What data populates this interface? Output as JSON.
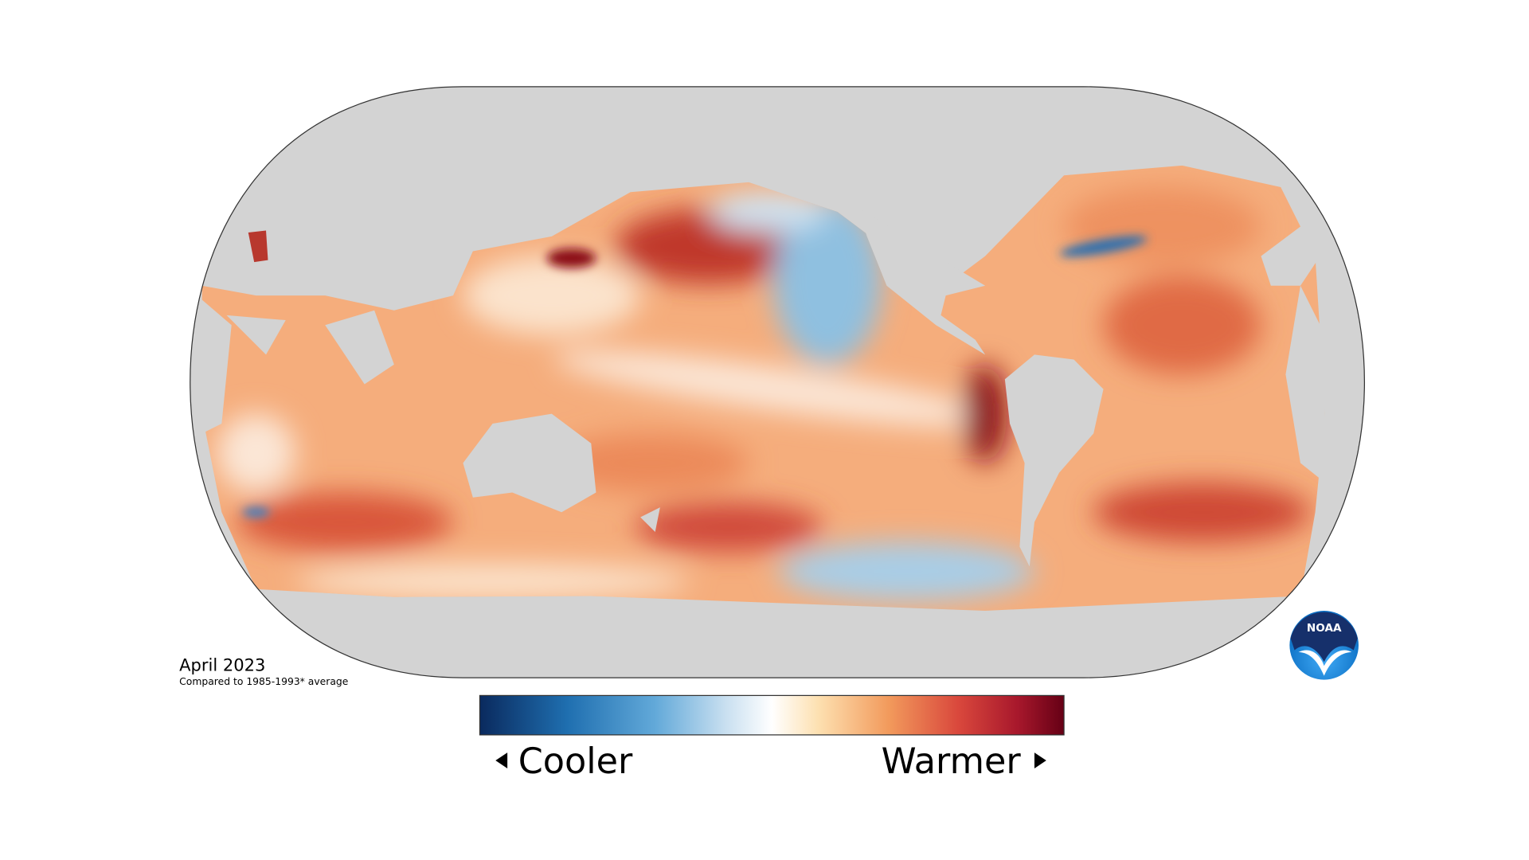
{
  "map": {
    "date": "April 2023",
    "subtitle": "Compared to 1985-1993* average"
  },
  "legend": {
    "low_label": "Cooler",
    "high_label": "Warmer"
  },
  "logo": {
    "text": "NOAA"
  }
}
